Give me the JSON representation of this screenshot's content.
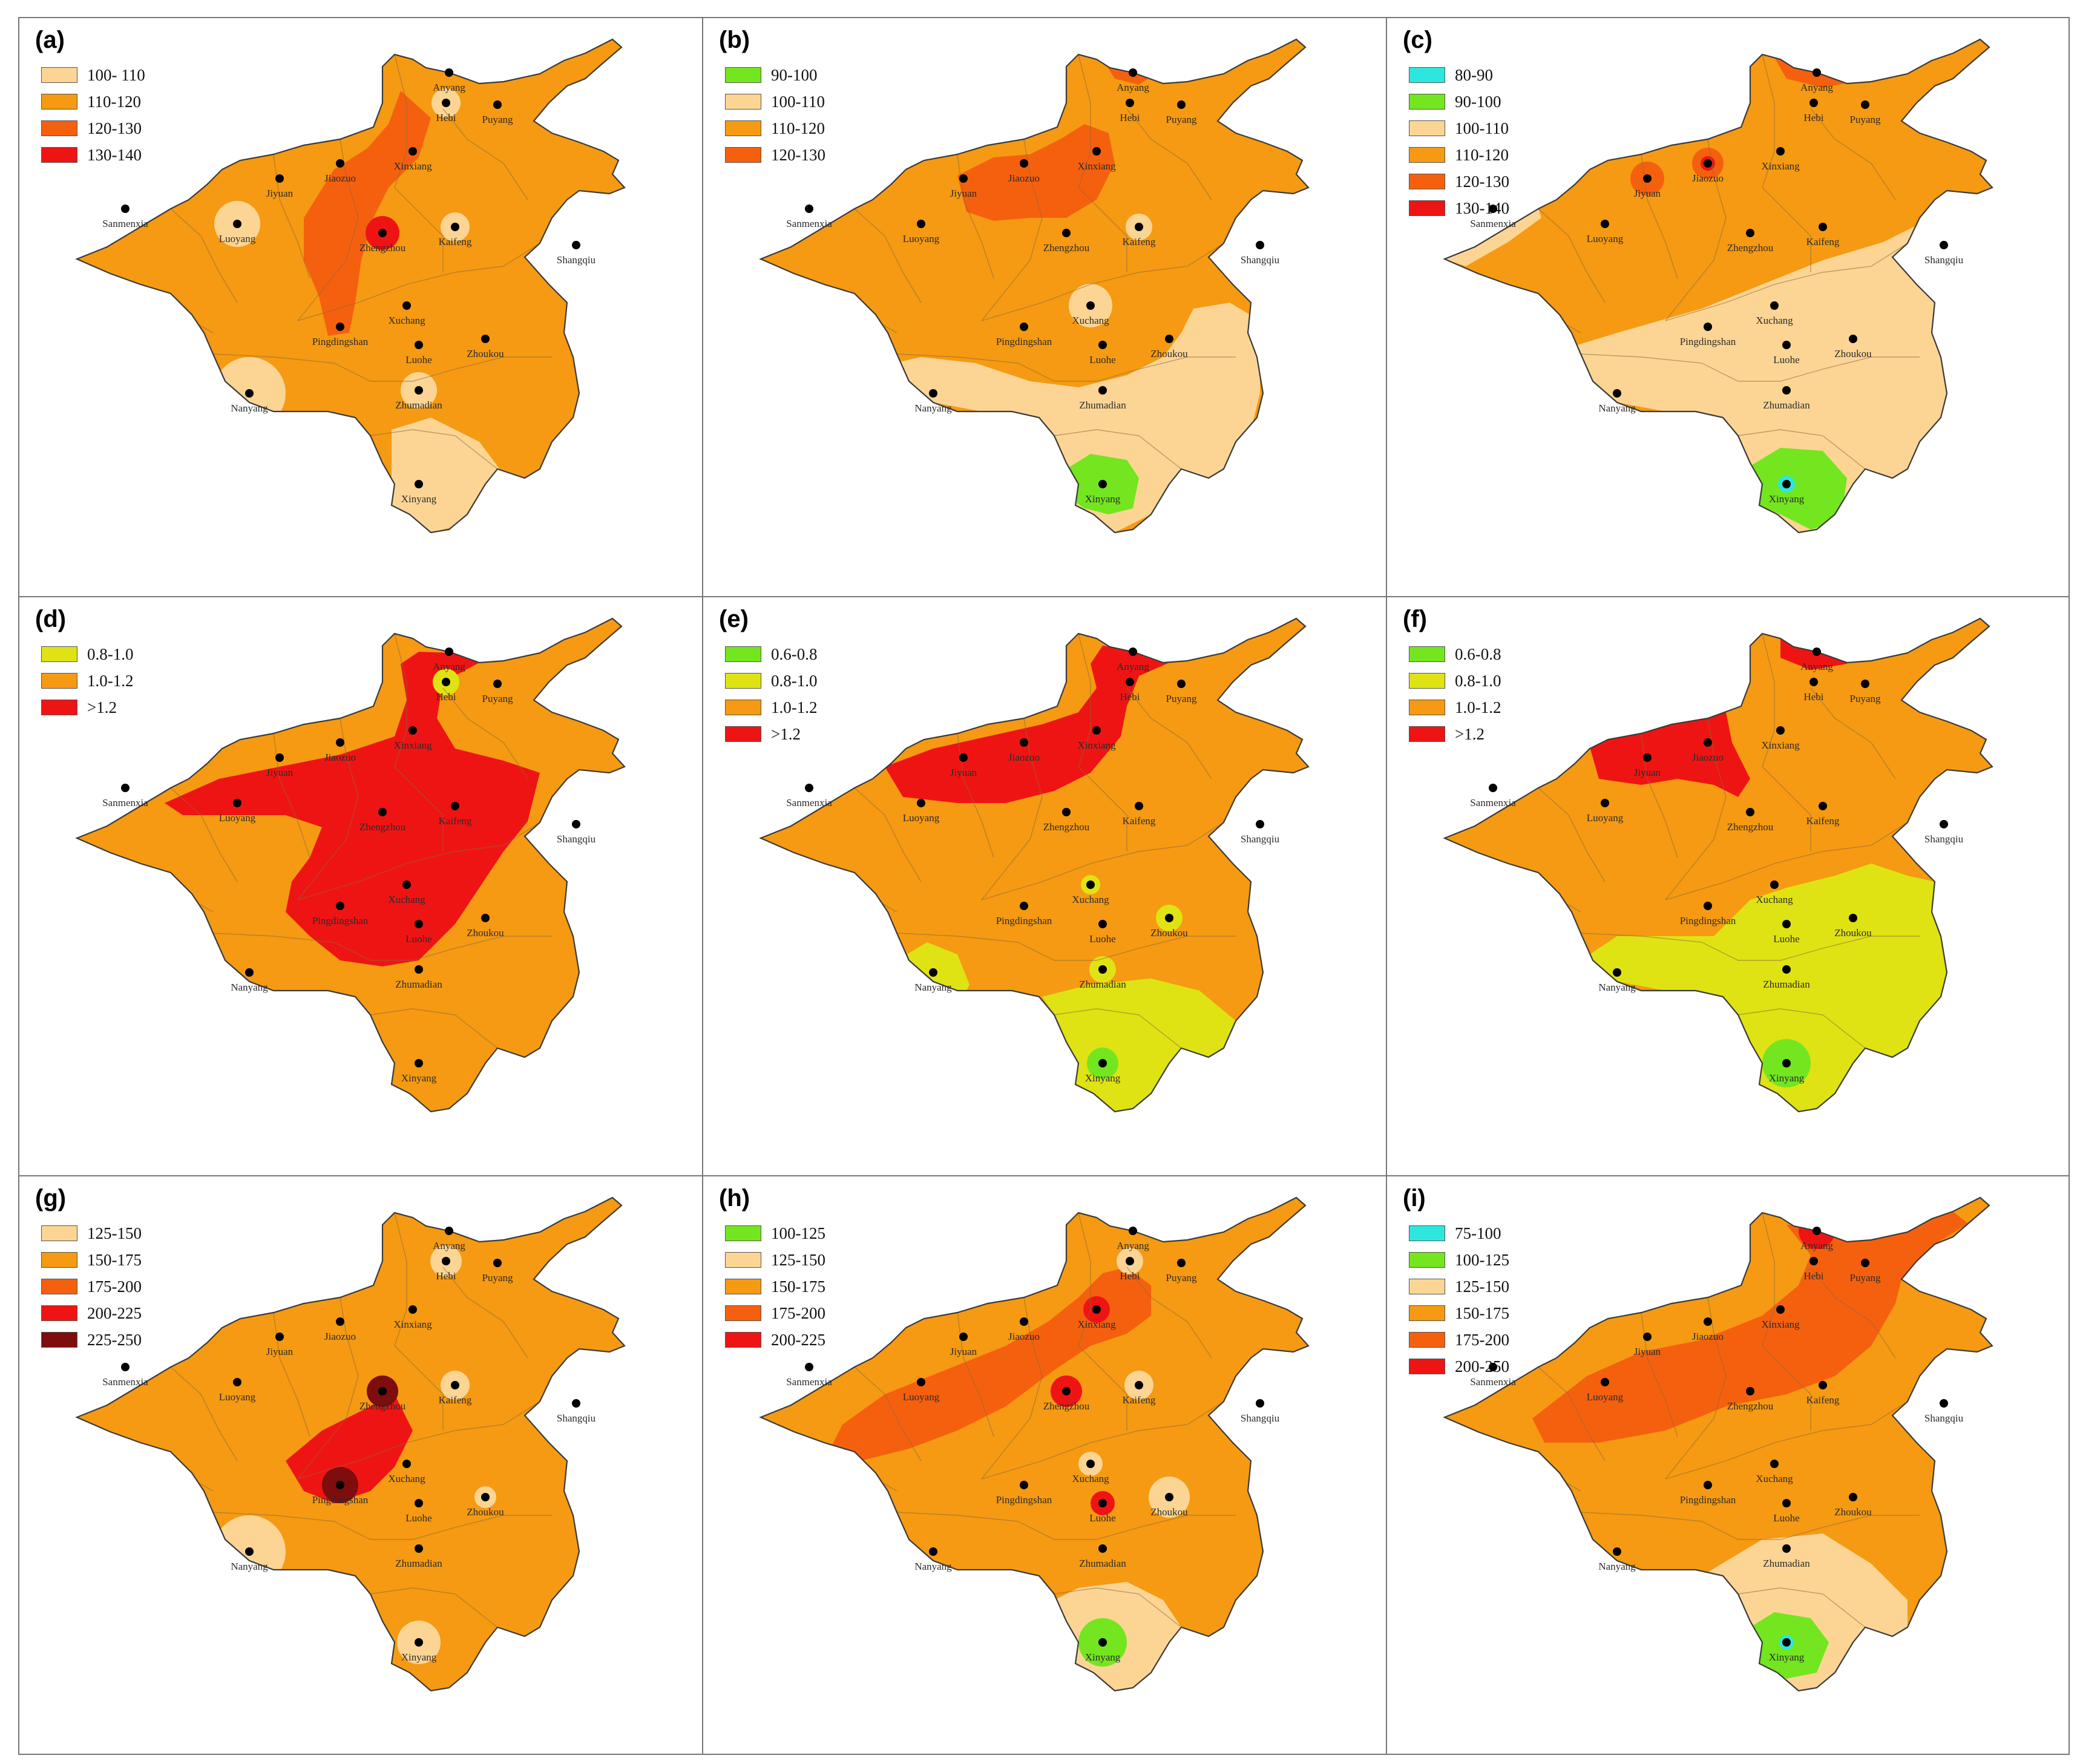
{
  "colors": {
    "cyan": "#2de7df",
    "green": "#73e61f",
    "yellow": "#dfe313",
    "light": "#fcd594",
    "orange": "#f59a12",
    "dark_orange": "#f5600f",
    "red": "#ef1414",
    "dark_red": "#7e0d0d"
  },
  "cities": [
    "Anyang",
    "Hebi",
    "Puyang",
    "Xinxiang",
    "Jiaozuo",
    "Jiyuan",
    "Sanmenxia",
    "Luoyang",
    "Zhengzhou",
    "Kaifeng",
    "Shangqiu",
    "Xuchang",
    "Pingdingshan",
    "Luohe",
    "Zhoukou",
    "Nanyang",
    "Zhumadian",
    "Xinyang"
  ],
  "panels": [
    {
      "label": "(a)",
      "legend": [
        {
          "text": "100- 110",
          "color": "light"
        },
        {
          "text": "110-120",
          "color": "orange"
        },
        {
          "text": "120-130",
          "color": "dark_orange"
        },
        {
          "text": "130-140",
          "color": "red"
        }
      ]
    },
    {
      "label": "(b)",
      "legend": [
        {
          "text": "90-100",
          "color": "green"
        },
        {
          "text": "100-110",
          "color": "light"
        },
        {
          "text": "110-120",
          "color": "orange"
        },
        {
          "text": "120-130",
          "color": "dark_orange"
        }
      ]
    },
    {
      "label": "(c)",
      "legend": [
        {
          "text": "80-90",
          "color": "cyan"
        },
        {
          "text": "90-100",
          "color": "green"
        },
        {
          "text": "100-110",
          "color": "light"
        },
        {
          "text": "110-120",
          "color": "orange"
        },
        {
          "text": "120-130",
          "color": "dark_orange"
        },
        {
          "text": "130-140",
          "color": "red"
        }
      ]
    },
    {
      "label": "(d)",
      "legend": [
        {
          "text": "0.8-1.0",
          "color": "yellow"
        },
        {
          "text": "1.0-1.2",
          "color": "orange"
        },
        {
          "text": ">1.2",
          "color": "red"
        }
      ]
    },
    {
      "label": "(e)",
      "legend": [
        {
          "text": "0.6-0.8",
          "color": "green"
        },
        {
          "text": "0.8-1.0",
          "color": "yellow"
        },
        {
          "text": "1.0-1.2",
          "color": "orange"
        },
        {
          "text": ">1.2",
          "color": "red"
        }
      ]
    },
    {
      "label": "(f)",
      "legend": [
        {
          "text": "0.6-0.8",
          "color": "green"
        },
        {
          "text": "0.8-1.0",
          "color": "yellow"
        },
        {
          "text": "1.0-1.2",
          "color": "orange"
        },
        {
          "text": ">1.2",
          "color": "red"
        }
      ]
    },
    {
      "label": "(g)",
      "legend": [
        {
          "text": "125-150",
          "color": "light"
        },
        {
          "text": "150-175",
          "color": "orange"
        },
        {
          "text": "175-200",
          "color": "dark_orange"
        },
        {
          "text": "200-225",
          "color": "red"
        },
        {
          "text": "225-250",
          "color": "dark_red"
        }
      ]
    },
    {
      "label": "(h)",
      "legend": [
        {
          "text": "100-125",
          "color": "green"
        },
        {
          "text": "125-150",
          "color": "light"
        },
        {
          "text": "150-175",
          "color": "orange"
        },
        {
          "text": "175-200",
          "color": "dark_orange"
        },
        {
          "text": "200-225",
          "color": "red"
        }
      ]
    },
    {
      "label": "(i)",
      "legend": [
        {
          "text": "75-100",
          "color": "cyan"
        },
        {
          "text": "100-125",
          "color": "green"
        },
        {
          "text": "125-150",
          "color": "light"
        },
        {
          "text": "150-175",
          "color": "orange"
        },
        {
          "text": "175-200",
          "color": "dark_orange"
        },
        {
          "text": "200-250",
          "color": "red"
        }
      ]
    }
  ]
}
